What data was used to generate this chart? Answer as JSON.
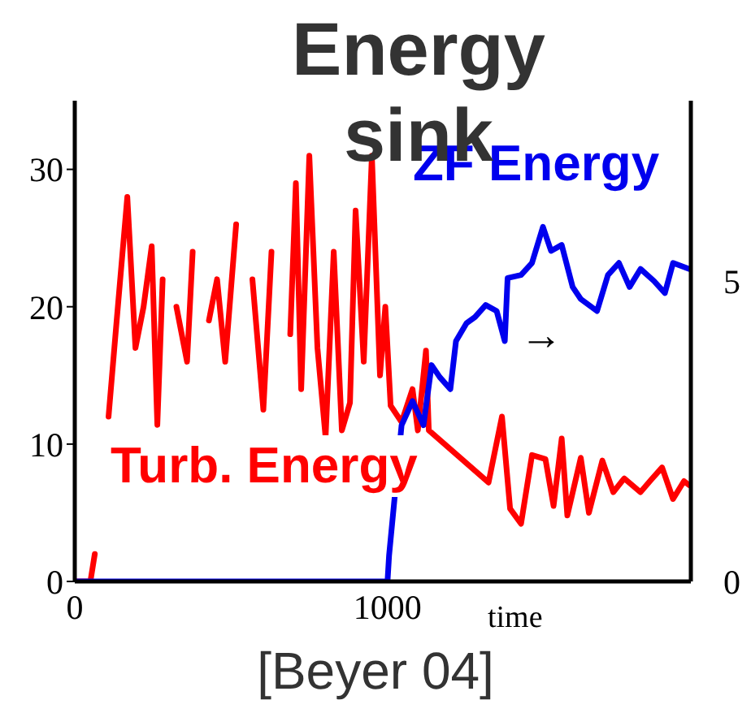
{
  "chart_data": {
    "type": "line",
    "title": "Energy sink",
    "xlabel": "time",
    "xlim": [
      0,
      1970
    ],
    "xticks": [
      0,
      1000
    ],
    "ylim": [
      0,
      35
    ],
    "yticks": [
      0,
      10,
      20,
      30
    ],
    "y2lim": [
      0,
      8
    ],
    "y2ticks": [
      0,
      5
    ],
    "legend": false,
    "marker": "none",
    "line_style": "solid",
    "series": [
      {
        "name": "Turb. Energy",
        "color": "#ff0000",
        "x": [
          0,
          50,
          64,
          82,
          90,
          108,
          134,
          168,
          194,
          220,
          246,
          264,
          281,
          307,
          325,
          359,
          377,
          403,
          429,
          455,
          481,
          516,
          542,
          568,
          603,
          629,
          663,
          689,
          707,
          724,
          750,
          776,
          802,
          828,
          854,
          880,
          898,
          924,
          950,
          976,
          993,
          1010,
          1045,
          1080,
          1097,
          1123,
          1132,
          1323,
          1366,
          1392,
          1427,
          1462,
          1505,
          1531,
          1557,
          1575,
          1618,
          1644,
          1687,
          1722,
          1757,
          1809,
          1843,
          1878,
          1913,
          1948,
          1965
        ],
        "values": [
          0,
          0,
          2,
          null,
          null,
          12,
          19,
          28,
          17,
          20,
          24.4,
          11.4,
          22,
          null,
          20,
          16,
          24,
          null,
          19,
          22,
          16,
          26,
          null,
          22,
          12.5,
          24,
          null,
          18,
          29,
          14,
          31,
          17,
          10.5,
          24,
          11,
          13,
          27,
          16,
          31,
          15,
          20,
          12.8,
          11.6,
          14,
          11,
          16.8,
          11,
          7.2,
          12,
          5.3,
          4.2,
          9.2,
          8.9,
          5.5,
          10.4,
          4.8,
          9,
          5,
          8.8,
          6.5,
          7.5,
          6.5,
          7.4,
          8.3,
          6,
          7.3,
          7
        ]
      },
      {
        "name": "ZF Energy",
        "color": "#0000ee",
        "axis": "y2",
        "x": [
          0,
          1000,
          1005,
          1045,
          1080,
          1115,
          1141,
          1167,
          1201,
          1219,
          1253,
          1280,
          1314,
          1349,
          1375,
          1384,
          1427,
          1462,
          1497,
          1523,
          1557,
          1592,
          1618,
          1670,
          1705,
          1740,
          1774,
          1809,
          1852,
          1887,
          1913,
          1965
        ],
        "values": [
          0,
          0,
          0.43,
          2.6,
          3.0,
          2.6,
          3.6,
          3.4,
          3.2,
          4.0,
          4.3,
          4.4,
          4.6,
          4.5,
          4.0,
          5.05,
          5.1,
          5.3,
          5.9,
          5.5,
          5.6,
          4.9,
          4.7,
          4.5,
          5.1,
          5.3,
          4.9,
          5.2,
          5.0,
          4.8,
          5.3,
          5.2
        ]
      }
    ],
    "annotations": [
      "→",
      "[Beyer 04]"
    ]
  }
}
